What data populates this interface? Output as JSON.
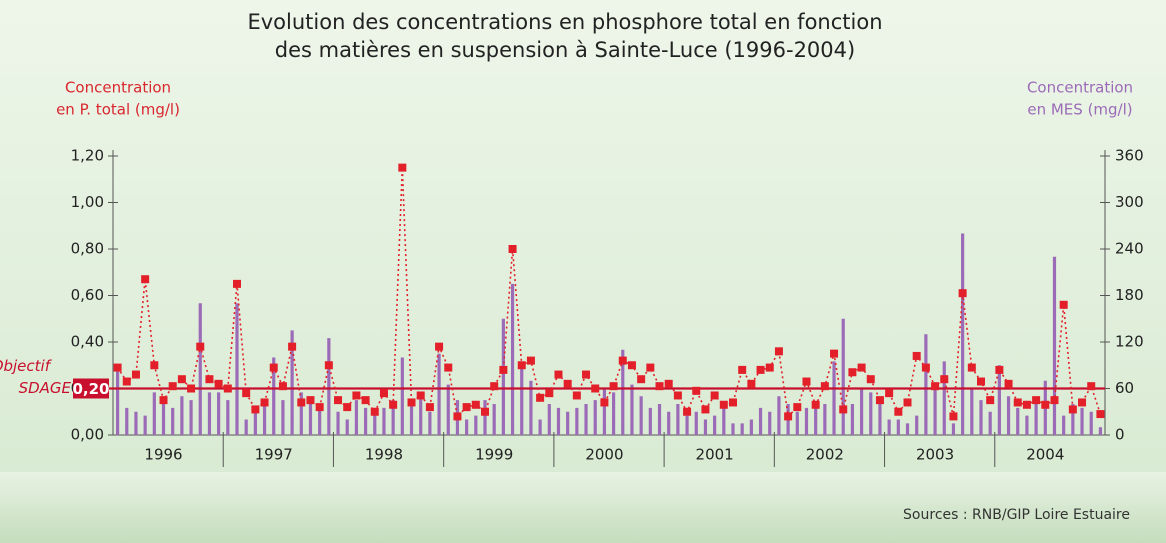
{
  "chart_data": {
    "type": "bar-line",
    "title": [
      "Evolution des concentrations en phosphore total en fonction",
      "des matières en suspension à Sainte-Luce (1996-2004)"
    ],
    "y_label": [
      "Concentration",
      "en P. total (mg/l)"
    ],
    "y2_label": [
      "Concentration",
      "en MES (mg/l)"
    ],
    "source": "Sources : RNB/GIP Loire Estuaire",
    "target": {
      "label": [
        "Objectif",
        "SDAGE"
      ],
      "value": 0.2,
      "value_label": "0,20",
      "color": "#c8102e"
    },
    "categories": [
      null,
      null,
      null,
      null,
      null,
      "1996",
      null,
      null,
      null,
      null,
      null,
      null,
      null,
      null,
      null,
      null,
      null,
      "1997",
      null,
      null,
      null,
      null,
      null,
      null,
      null,
      null,
      null,
      null,
      null,
      "1998",
      null,
      null,
      null,
      null,
      null,
      null,
      null,
      null,
      null,
      null,
      null,
      "1999",
      null,
      null,
      null,
      null,
      null,
      null,
      null,
      null,
      null,
      null,
      null,
      "2000",
      null,
      null,
      null,
      null,
      null,
      null,
      null,
      null,
      null,
      null,
      null,
      "2001",
      null,
      null,
      null,
      null,
      null,
      null,
      null,
      null,
      null,
      null,
      null,
      "2002",
      null,
      null,
      null,
      null,
      null,
      null,
      null,
      null,
      null,
      null,
      null,
      "2003",
      null,
      null,
      null,
      null,
      null,
      null,
      null,
      null,
      null,
      null,
      null,
      "2004",
      null,
      null,
      null,
      null,
      null,
      null
    ],
    "series": [
      {
        "name": "P. total",
        "type": "line",
        "color": "#e3202a",
        "values": [
          0.29,
          0.23,
          0.26,
          0.67,
          0.3,
          0.15,
          0.21,
          0.24,
          0.2,
          0.38,
          0.24,
          0.22,
          0.2,
          0.65,
          0.18,
          0.11,
          0.14,
          0.29,
          0.21,
          0.38,
          0.14,
          0.15,
          0.12,
          0.3,
          0.15,
          0.12,
          0.17,
          0.15,
          0.1,
          0.18,
          0.13,
          1.15,
          0.14,
          0.17,
          0.12,
          0.38,
          0.29,
          0.08,
          0.12,
          0.13,
          0.1,
          0.21,
          0.28,
          0.8,
          0.3,
          0.32,
          0.16,
          0.18,
          0.26,
          0.22,
          0.17,
          0.26,
          0.2,
          0.14,
          0.21,
          0.32,
          0.3,
          0.24,
          0.29,
          0.21,
          0.22,
          0.17,
          0.1,
          0.19,
          0.11,
          0.17,
          0.13,
          0.14,
          0.28,
          0.22,
          0.28,
          0.29,
          0.36,
          0.08,
          0.12,
          0.23,
          0.13,
          0.21,
          0.35,
          0.11,
          0.27,
          0.29,
          0.24,
          0.15,
          0.18,
          0.1,
          0.14,
          0.34,
          0.29,
          0.21,
          0.24,
          0.08,
          0.61,
          0.29,
          0.23,
          0.15,
          0.28,
          0.22,
          0.14,
          0.13,
          0.15,
          0.13,
          0.15,
          0.56,
          0.11,
          0.14,
          0.21,
          0.09
        ]
      },
      {
        "name": "MES",
        "type": "bar",
        "axis": "y2",
        "color": "#9b6bb8",
        "values": [
          90,
          35,
          30,
          25,
          55,
          45,
          35,
          50,
          45,
          170,
          55,
          55,
          45,
          170,
          20,
          35,
          40,
          100,
          45,
          135,
          55,
          45,
          40,
          125,
          30,
          20,
          45,
          35,
          30,
          35,
          45,
          100,
          40,
          50,
          30,
          105,
          65,
          45,
          20,
          25,
          45,
          40,
          150,
          195,
          90,
          70,
          20,
          40,
          35,
          30,
          35,
          40,
          45,
          60,
          55,
          110,
          65,
          50,
          35,
          40,
          30,
          40,
          25,
          30,
          20,
          25,
          35,
          15,
          15,
          20,
          35,
          30,
          50,
          40,
          30,
          35,
          35,
          40,
          95,
          150,
          40,
          60,
          55,
          45,
          20,
          20,
          15,
          25,
          130,
          65,
          95,
          15,
          260,
          60,
          45,
          30,
          90,
          50,
          35,
          25,
          45,
          70,
          230,
          25,
          40,
          35,
          30,
          10
        ]
      }
    ],
    "ylim": [
      0,
      1.2
    ],
    "yticks": [
      {
        "value": 0,
        "label": "0,00"
      },
      {
        "value": 0.2,
        "label": "0,20"
      },
      {
        "value": 0.4,
        "label": "0,40"
      },
      {
        "value": 0.6,
        "label": "0,60"
      },
      {
        "value": 0.8,
        "label": "0,80"
      },
      {
        "value": 1.0,
        "label": "1,00"
      },
      {
        "value": 1.2,
        "label": "1,20"
      }
    ],
    "y2lim": [
      0,
      360
    ],
    "y2ticks": [
      0,
      60,
      120,
      180,
      240,
      300,
      360
    ]
  }
}
